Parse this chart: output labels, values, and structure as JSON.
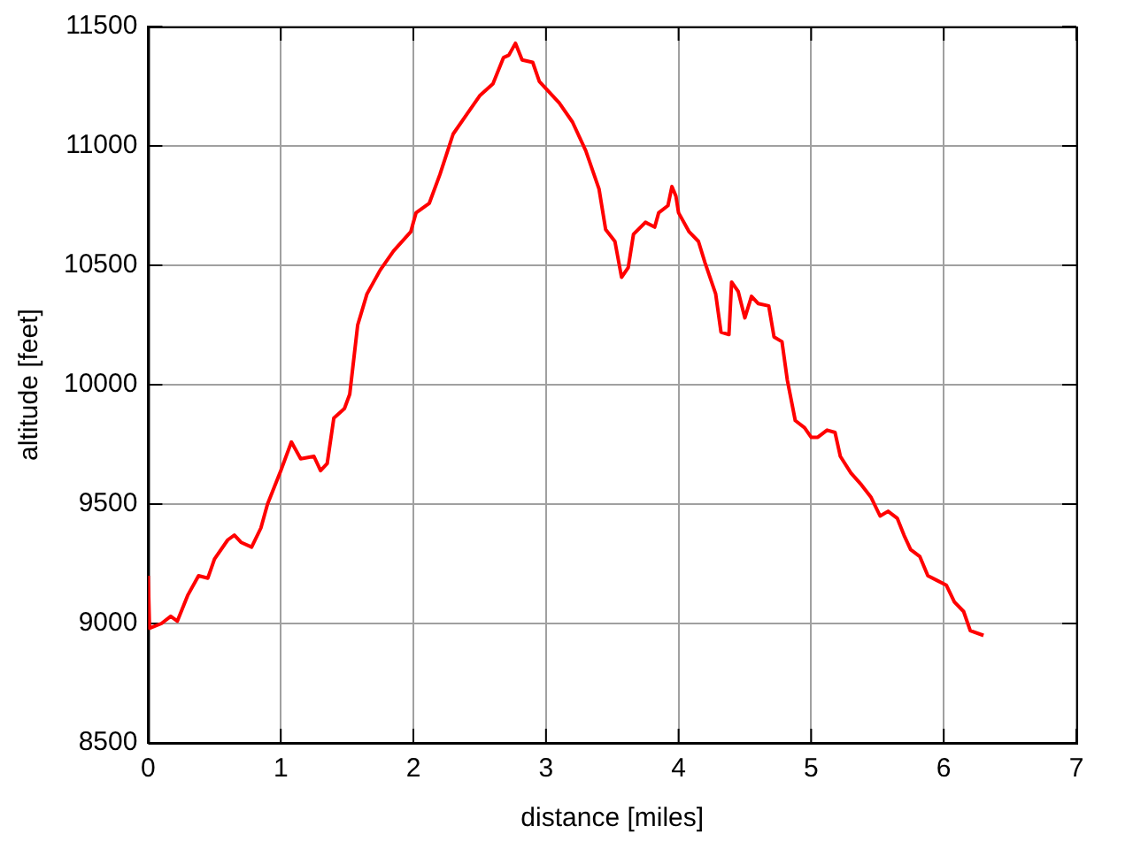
{
  "chart_data": {
    "type": "line",
    "xlabel": "distance [miles]",
    "ylabel": "altitude [feet]",
    "xlim": [
      0,
      7
    ],
    "xticks": [
      0,
      1,
      2,
      3,
      4,
      5,
      6,
      7
    ],
    "ylim": [
      8500,
      11500
    ],
    "yticks": [
      8500,
      9000,
      9500,
      10000,
      10500,
      11000,
      11500
    ],
    "grid": true,
    "legend": false,
    "marker": "none",
    "line_style": "solid",
    "series": [
      {
        "color": "#ff0000",
        "x": [
          0,
          0.01,
          0.1,
          0.17,
          0.22,
          0.3,
          0.38,
          0.45,
          0.5,
          0.6,
          0.65,
          0.7,
          0.78,
          0.85,
          0.9,
          1.0,
          1.08,
          1.15,
          1.25,
          1.3,
          1.35,
          1.4,
          1.48,
          1.52,
          1.58,
          1.65,
          1.75,
          1.85,
          1.98,
          2.02,
          2.12,
          2.2,
          2.3,
          2.4,
          2.5,
          2.6,
          2.68,
          2.72,
          2.77,
          2.82,
          2.9,
          2.95,
          3.1,
          3.2,
          3.3,
          3.4,
          3.45,
          3.52,
          3.57,
          3.62,
          3.66,
          3.75,
          3.82,
          3.85,
          3.92,
          3.95,
          3.98,
          4.0,
          4.08,
          4.15,
          4.2,
          4.28,
          4.32,
          4.38,
          4.4,
          4.45,
          4.5,
          4.55,
          4.6,
          4.68,
          4.72,
          4.78,
          4.82,
          4.88,
          4.95,
          5.0,
          5.05,
          5.12,
          5.18,
          5.22,
          5.3,
          5.38,
          5.45,
          5.52,
          5.58,
          5.65,
          5.7,
          5.75,
          5.82,
          5.88,
          5.95,
          6.02,
          6.08,
          6.15,
          6.2,
          6.3
        ],
        "values": [
          9200,
          8980,
          9000,
          9030,
          9010,
          9120,
          9200,
          9190,
          9270,
          9350,
          9370,
          9340,
          9320,
          9400,
          9500,
          9640,
          9760,
          9690,
          9700,
          9640,
          9670,
          9860,
          9900,
          9960,
          10250,
          10380,
          10480,
          10560,
          10640,
          10720,
          10760,
          10880,
          11050,
          11130,
          11210,
          11260,
          11370,
          11380,
          11430,
          11360,
          11350,
          11270,
          11180,
          11100,
          10980,
          10820,
          10650,
          10600,
          10450,
          10490,
          10630,
          10680,
          10660,
          10720,
          10750,
          10830,
          10790,
          10720,
          10640,
          10600,
          10510,
          10380,
          10220,
          10210,
          10430,
          10390,
          10280,
          10370,
          10340,
          10330,
          10200,
          10180,
          10020,
          9850,
          9820,
          9780,
          9780,
          9810,
          9800,
          9700,
          9630,
          9580,
          9530,
          9450,
          9470,
          9440,
          9370,
          9310,
          9280,
          9200,
          9180,
          9160,
          9090,
          9050,
          8970,
          8950
        ]
      }
    ]
  }
}
